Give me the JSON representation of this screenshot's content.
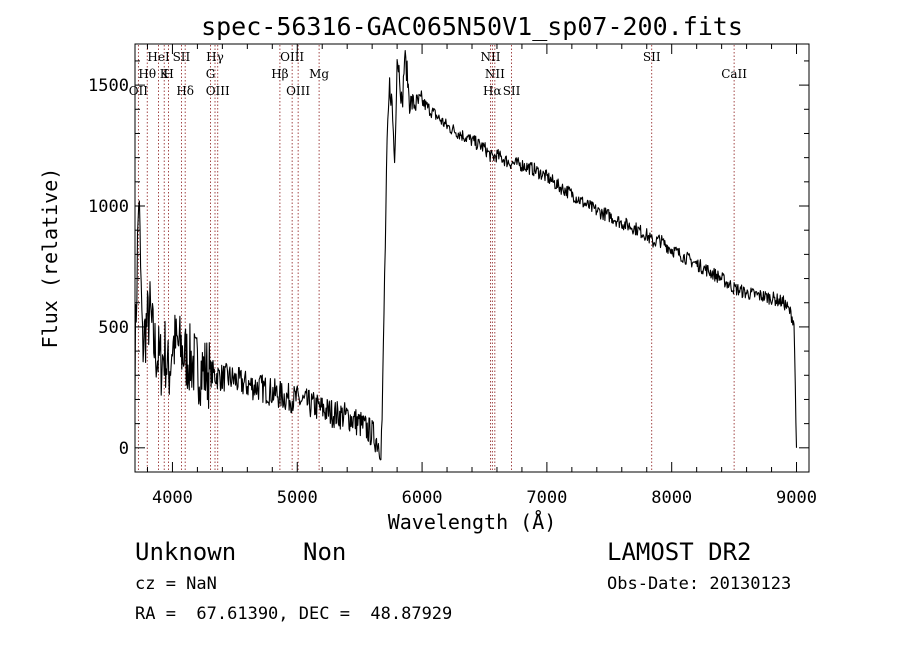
{
  "chart_data": {
    "type": "line",
    "title": "spec-56316-GAC065N50V1_sp07-200.fits",
    "xlabel": "Wavelength (Å)",
    "ylabel": "Flux (relative)",
    "xlim": [
      3700,
      9100
    ],
    "ylim": [
      -100,
      1670
    ],
    "x_ticks": [
      4000,
      5000,
      6000,
      7000,
      8000,
      9000
    ],
    "x_tick_labels": [
      "4000",
      "5000",
      "6000",
      "7000",
      "8000",
      "9000"
    ],
    "y_ticks": [
      0,
      500,
      1000,
      1500
    ],
    "y_tick_labels": [
      "0",
      "500",
      "1000",
      "1500"
    ],
    "grid": false,
    "line_color": "#000000",
    "marker_color": "#8b1a1a",
    "series": [
      {
        "x": [
          3700,
          3730,
          3760,
          3790,
          3820,
          3850,
          3880,
          3910,
          3940,
          3970,
          4000,
          4050,
          4100,
          4150,
          4200,
          4250,
          4300,
          4350,
          4400,
          4450,
          4500,
          4600,
          4700,
          4800,
          4900,
          5000,
          5100,
          5200,
          5300,
          5400,
          5500,
          5600,
          5650,
          5670,
          5680,
          5700,
          5720,
          5740,
          5760,
          5780,
          5800,
          5820,
          5840,
          5860,
          5880,
          5900,
          5950,
          6000,
          6100,
          6200,
          6300,
          6400,
          6500,
          6560,
          6600,
          6700,
          6800,
          6900,
          7000,
          7100,
          7200,
          7300,
          7400,
          7500,
          7600,
          7700,
          7800,
          7850,
          7900,
          8000,
          8100,
          8200,
          8300,
          8400,
          8500,
          8600,
          8700,
          8800,
          8900,
          8950,
          8980,
          9000
        ],
        "y": [
          350,
          1050,
          420,
          500,
          560,
          430,
          380,
          350,
          400,
          300,
          430,
          420,
          380,
          360,
          330,
          320,
          310,
          300,
          290,
          290,
          280,
          260,
          250,
          230,
          210,
          200,
          180,
          160,
          140,
          130,
          100,
          60,
          20,
          0,
          120,
          700,
          1250,
          1500,
          1420,
          1180,
          1620,
          1550,
          1400,
          1620,
          1550,
          1430,
          1420,
          1430,
          1380,
          1330,
          1300,
          1270,
          1240,
          1200,
          1210,
          1180,
          1170,
          1150,
          1120,
          1080,
          1050,
          1010,
          980,
          960,
          930,
          910,
          880,
          850,
          860,
          820,
          790,
          760,
          730,
          700,
          660,
          640,
          630,
          620,
          600,
          560,
          520,
          0
        ]
      }
    ],
    "lines": [
      {
        "name": "OII",
        "x": 3727,
        "row": 3
      },
      {
        "name": "Hθ",
        "x": 3798,
        "row": 2
      },
      {
        "name": "HeI",
        "x": 3889,
        "row": 1
      },
      {
        "name": "K",
        "x": 3934,
        "row": 2
      },
      {
        "name": "H",
        "x": 3969,
        "row": 2
      },
      {
        "name": "SII",
        "x": 4072,
        "row": 1
      },
      {
        "name": "Hδ",
        "x": 4102,
        "row": 3
      },
      {
        "name": "Hγ",
        "x": 4341,
        "row": 1
      },
      {
        "name": "G",
        "x": 4305,
        "row": 2
      },
      {
        "name": "OIII",
        "x": 4363,
        "row": 3
      },
      {
        "name": "Hβ",
        "x": 4861,
        "row": 2
      },
      {
        "name": "OIII",
        "x": 4959,
        "row": 1
      },
      {
        "name": "OIII",
        "x": 5007,
        "row": 3
      },
      {
        "name": "Mg",
        "x": 5175,
        "row": 2
      },
      {
        "name": "NII",
        "x": 6548,
        "row": 1
      },
      {
        "name": "NII",
        "x": 6583,
        "row": 2
      },
      {
        "name": "Hα",
        "x": 6563,
        "row": 3
      },
      {
        "name": "SII",
        "x": 6717,
        "row": 3
      },
      {
        "name": "SII",
        "x": 7840,
        "row": 1
      },
      {
        "name": "CaII",
        "x": 8500,
        "row": 2
      }
    ]
  },
  "footer": {
    "class": "Unknown",
    "subclass": "Non",
    "survey": "LAMOST DR2",
    "cz": "cz = NaN",
    "obs_date": "Obs-Date: 20130123",
    "coords": "RA =  67.61390, DEC =  48.87929"
  }
}
